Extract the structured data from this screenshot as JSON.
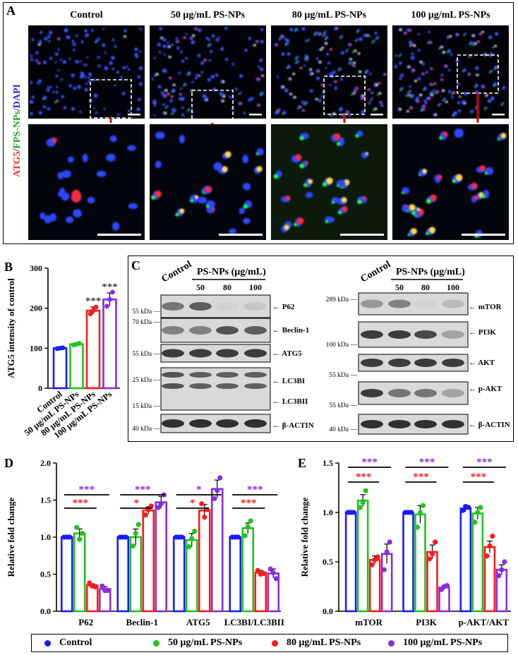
{
  "panel_a": {
    "letter": "A",
    "side_label_parts": [
      {
        "text": "ATG5",
        "color": "#ff2a2a"
      },
      {
        "text": "/",
        "color": "#2b2bd9"
      },
      {
        "text": "FPS-NPs",
        "color": "#1faa1f"
      },
      {
        "text": "/DAPI",
        "color": "#2b2bd9"
      }
    ],
    "column_titles": [
      "Control",
      "50 μg/mL PS-NPs",
      "80 μg/mL PS-NPs",
      "100 μg/mL PS-NPs"
    ]
  },
  "panel_c": {
    "letter": "C",
    "left": {
      "control_label": "Control",
      "header": "PS-NPs (μg/mL)",
      "doses": [
        "50",
        "80",
        "100"
      ],
      "bands": [
        "P62",
        "Beclin-1",
        "ATG5",
        "LC3BI",
        "LC3BII",
        "β-ACTIN"
      ],
      "markers": [
        "55 kDa",
        "70 kDa",
        "55 kDa",
        "25 kDa",
        "15 kDa",
        "40 kDa"
      ]
    },
    "right": {
      "control_label": "Control",
      "header": "PS-NPs (μg/mL)",
      "doses": [
        "50",
        "80",
        "100"
      ],
      "bands": [
        "mTOR",
        "PI3K",
        "AKT",
        "p-AKT",
        "β-ACTIN"
      ],
      "markers": [
        "289 kDa",
        "100 kDa",
        "55 kDa",
        "55 kDa",
        "40 kDa"
      ]
    }
  },
  "legend": {
    "items": [
      {
        "label": "Control",
        "color": "#1a1aff"
      },
      {
        "label": "50 μg/mL PS-NPs",
        "color": "#22c322"
      },
      {
        "label": "80 μg/mL PS-NPs",
        "color": "#ff1a1a"
      },
      {
        "label": "100 μg/mL PS-NPs",
        "color": "#8a2be2"
      }
    ]
  },
  "chart_data": [
    {
      "panel": "B",
      "type": "bar",
      "ylabel": "ATG5 intensity of control",
      "ylim": [
        0,
        300
      ],
      "yticks": [
        "0",
        "100",
        "200",
        "300"
      ],
      "categories": [
        "Control",
        "50 μg/mL PS-NPs",
        "80 μg/mL PS-NPs",
        "100 μg/mL PS-NPs"
      ],
      "colors": [
        "#1a1aff",
        "#22c322",
        "#ff1a1a",
        "#8a2be2"
      ],
      "values": [
        100,
        110,
        194,
        222
      ],
      "errors": [
        2,
        3,
        9,
        16
      ],
      "points": [
        [
          99,
          100,
          101
        ],
        [
          108,
          110,
          112
        ],
        [
          186,
          194,
          203
        ],
        [
          205,
          222,
          240
        ]
      ],
      "significance": [
        "",
        "",
        "***",
        "***"
      ]
    },
    {
      "panel": "D",
      "type": "bar",
      "ylabel": "Relative fold change",
      "ylim": [
        0,
        2.0
      ],
      "yticks": [
        "0.0",
        "0.5",
        "1.0",
        "1.5",
        "2.0"
      ],
      "categories": [
        "P62",
        "Beclin-1",
        "ATG5",
        "LC3BI/LC3BII"
      ],
      "series": [
        {
          "name": "Control",
          "color": "#1a1aff",
          "values": [
            1.0,
            1.0,
            1.0,
            1.0
          ],
          "errors": [
            0.01,
            0.01,
            0.01,
            0.01
          ],
          "points": [
            [
              1.0,
              1.0,
              1.0
            ],
            [
              1.0,
              1.0,
              1.0
            ],
            [
              1.0,
              1.0,
              1.0
            ],
            [
              1.0,
              1.0,
              1.0
            ]
          ]
        },
        {
          "name": "50 μg/mL PS-NPs",
          "color": "#22c322",
          "values": [
            1.05,
            1.0,
            0.96,
            1.12
          ],
          "errors": [
            0.06,
            0.11,
            0.09,
            0.07
          ],
          "points": [
            [
              1.13,
              0.97,
              1.05
            ],
            [
              0.88,
              1.05,
              1.17
            ],
            [
              0.87,
              0.98,
              1.08
            ],
            [
              1.02,
              1.14,
              1.22
            ]
          ]
        },
        {
          "name": "80 μg/mL PS-NPs",
          "color": "#ff1a1a",
          "values": [
            0.35,
            1.36,
            1.36,
            0.52
          ],
          "errors": [
            0.02,
            0.05,
            0.08,
            0.03
          ],
          "points": [
            [
              0.38,
              0.34,
              0.33
            ],
            [
              1.3,
              1.37,
              1.42
            ],
            [
              1.45,
              1.27,
              1.37
            ],
            [
              0.55,
              0.5,
              0.51
            ]
          ]
        },
        {
          "name": "100 μg/mL PS-NPs",
          "color": "#8a2be2",
          "values": [
            0.3,
            1.47,
            1.65,
            0.51
          ],
          "errors": [
            0.03,
            0.08,
            0.12,
            0.06
          ],
          "points": [
            [
              0.34,
              0.28,
              0.28
            ],
            [
              1.4,
              1.45,
              1.57
            ],
            [
              1.52,
              1.63,
              1.8
            ],
            [
              0.57,
              0.52,
              0.44
            ]
          ]
        }
      ],
      "brackets": [
        {
          "category": 0,
          "to_series": 2,
          "label": "***",
          "color": "#ff1a1a"
        },
        {
          "category": 0,
          "to_series": 3,
          "label": "***",
          "color": "#8a2be2"
        },
        {
          "category": 1,
          "to_series": 2,
          "label": "*",
          "color": "#ff1a1a"
        },
        {
          "category": 1,
          "to_series": 3,
          "label": "***",
          "color": "#8a2be2"
        },
        {
          "category": 2,
          "to_series": 2,
          "label": "*",
          "color": "#ff1a1a"
        },
        {
          "category": 2,
          "to_series": 3,
          "label": "*",
          "color": "#8a2be2"
        },
        {
          "category": 3,
          "to_series": 2,
          "label": "***",
          "color": "#ff1a1a"
        },
        {
          "category": 3,
          "to_series": 3,
          "label": "***",
          "color": "#8a2be2"
        }
      ]
    },
    {
      "panel": "E",
      "type": "bar",
      "ylabel": "Relative fold change",
      "ylim": [
        0,
        1.5
      ],
      "yticks": [
        "0.0",
        "0.5",
        "1.0",
        "1.5"
      ],
      "categories": [
        "mTOR",
        "PI3K",
        "p-AKT/AKT"
      ],
      "series": [
        {
          "name": "Control",
          "color": "#1a1aff",
          "values": [
            1.0,
            1.0,
            1.04
          ],
          "errors": [
            0.01,
            0.01,
            0.03
          ],
          "points": [
            [
              1.0,
              1.0,
              1.0
            ],
            [
              1.0,
              1.0,
              1.0
            ],
            [
              1.02,
              1.06,
              1.05
            ]
          ]
        },
        {
          "name": "50 μg/mL PS-NPs",
          "color": "#22c322",
          "values": [
            1.12,
            0.98,
            0.99
          ],
          "errors": [
            0.06,
            0.09,
            0.06
          ],
          "points": [
            [
              1.05,
              1.1,
              1.22
            ],
            [
              0.85,
              1.0,
              1.07
            ],
            [
              0.9,
              1.0,
              1.05
            ]
          ]
        },
        {
          "name": "80 μg/mL PS-NPs",
          "color": "#ff1a1a",
          "values": [
            0.52,
            0.6,
            0.65
          ],
          "errors": [
            0.04,
            0.07,
            0.06
          ],
          "points": [
            [
              0.47,
              0.52,
              0.55
            ],
            [
              0.53,
              0.58,
              0.7
            ],
            [
              0.56,
              0.66,
              0.76
            ]
          ]
        },
        {
          "name": "100 μg/mL PS-NPs",
          "color": "#8a2be2",
          "values": [
            0.58,
            0.24,
            0.42
          ],
          "errors": [
            0.1,
            0.02,
            0.05
          ],
          "points": [
            [
              0.42,
              0.6,
              0.7
            ],
            [
              0.22,
              0.25,
              0.26
            ],
            [
              0.36,
              0.42,
              0.5
            ]
          ]
        }
      ],
      "brackets": [
        {
          "category": 0,
          "to_series": 2,
          "label": "***",
          "color": "#ff1a1a"
        },
        {
          "category": 0,
          "to_series": 3,
          "label": "***",
          "color": "#8a2be2"
        },
        {
          "category": 1,
          "to_series": 2,
          "label": "***",
          "color": "#ff1a1a"
        },
        {
          "category": 1,
          "to_series": 3,
          "label": "***",
          "color": "#8a2be2"
        },
        {
          "category": 2,
          "to_series": 2,
          "label": "***",
          "color": "#ff1a1a"
        },
        {
          "category": 2,
          "to_series": 3,
          "label": "***",
          "color": "#8a2be2"
        }
      ]
    }
  ]
}
